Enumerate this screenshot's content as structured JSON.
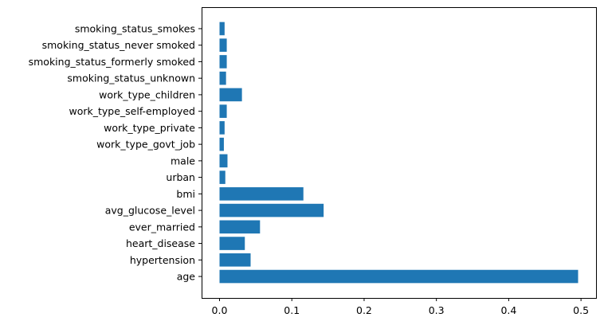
{
  "chart_data": {
    "type": "bar",
    "orientation": "horizontal",
    "categories": [
      "age",
      "hypertension",
      "heart_disease",
      "ever_married",
      "avg_glucose_level",
      "bmi",
      "urban",
      "male",
      "work_type_govt_job",
      "work_type_private",
      "work_type_self-employed",
      "work_type_children",
      "smoking_status_unknown",
      "smoking_status_formerly smoked",
      "smoking_status_never smoked",
      "smoking_status_smokes"
    ],
    "values": [
      0.496,
      0.043,
      0.035,
      0.056,
      0.144,
      0.116,
      0.008,
      0.011,
      0.006,
      0.007,
      0.01,
      0.031,
      0.009,
      0.01,
      0.01,
      0.007
    ],
    "xlim": [
      -0.0248,
      0.5208
    ],
    "xticks": [
      0.0,
      0.1,
      0.2,
      0.3,
      0.4,
      0.5
    ],
    "xtick_labels": [
      "0.0",
      "0.1",
      "0.2",
      "0.3",
      "0.4",
      "0.5"
    ],
    "bar_color": "#1f77b4",
    "grid": false,
    "legend": false
  }
}
